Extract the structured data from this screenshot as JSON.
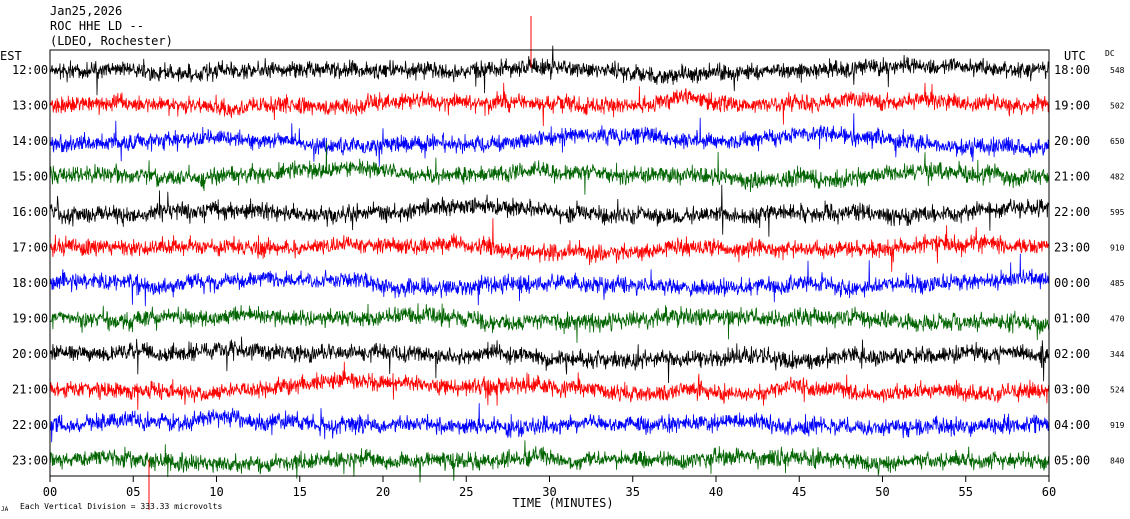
{
  "chart_data": {
    "type": "line",
    "title_lines": [
      "Jan25,2026",
      "ROC HHE LD --",
      "(LDEO, Rochester)"
    ],
    "left_header": "EST",
    "right_header": "UTC",
    "dc_header": "DC",
    "xlabel": "TIME (MINUTES)",
    "footer": "Each Vertical Division =  333.33 microvolts",
    "corner_mark": "JA",
    "xlim": [
      0,
      60
    ],
    "x_ticks": [
      "00",
      "05",
      "10",
      "15",
      "20",
      "25",
      "30",
      "35",
      "40",
      "45",
      "50",
      "55",
      "60"
    ],
    "trace_colors": [
      "#000000",
      "#ff0000",
      "#0000ff",
      "#006400"
    ],
    "hours": [
      {
        "est": "12:00",
        "utc": "18:00",
        "dc": "548"
      },
      {
        "est": "13:00",
        "utc": "19:00",
        "dc": "502"
      },
      {
        "est": "14:00",
        "utc": "20:00",
        "dc": "650"
      },
      {
        "est": "15:00",
        "utc": "21:00",
        "dc": "482"
      },
      {
        "est": "16:00",
        "utc": "22:00",
        "dc": "595"
      },
      {
        "est": "17:00",
        "utc": "23:00",
        "dc": "910"
      },
      {
        "est": "18:00",
        "utc": "00:00",
        "dc": "485"
      },
      {
        "est": "19:00",
        "utc": "01:00",
        "dc": "470"
      },
      {
        "est": "20:00",
        "utc": "02:00",
        "dc": "344"
      },
      {
        "est": "21:00",
        "utc": "03:00",
        "dc": "524"
      },
      {
        "est": "22:00",
        "utc": "04:00",
        "dc": "919"
      },
      {
        "est": "23:00",
        "utc": "05:00",
        "dc": "840"
      }
    ]
  }
}
